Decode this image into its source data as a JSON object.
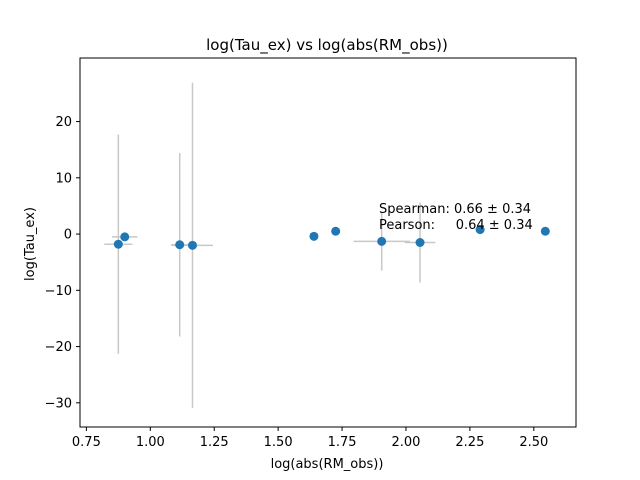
{
  "chart_data": {
    "type": "scatter",
    "title": "log(Tau_ex) vs log(abs(RM_obs))",
    "xlabel": "log(abs(RM_obs))",
    "ylabel": "log(Tau_ex)",
    "xlim": [
      0.725,
      2.665
    ],
    "ylim": [
      -34.3,
      31.3
    ],
    "xticks": [
      0.75,
      1.0,
      1.25,
      1.5,
      1.75,
      2.0,
      2.25,
      2.5
    ],
    "xtick_labels": [
      "0.75",
      "1.00",
      "1.25",
      "1.50",
      "1.75",
      "2.00",
      "2.25",
      "2.50"
    ],
    "yticks": [
      -30,
      -20,
      -10,
      0,
      10,
      20
    ],
    "ytick_labels": [
      "−30",
      "−20",
      "−10",
      "0",
      "10",
      "20"
    ],
    "grid": false,
    "marker_color": "#1f77b4",
    "errorbar_color": "#c8c8c8",
    "points": [
      {
        "x": 0.875,
        "y": -1.8,
        "xerr": 0.055,
        "yerr": 19.5
      },
      {
        "x": 0.9,
        "y": -0.5,
        "xerr": 0.05,
        "yerr": 0
      },
      {
        "x": 1.115,
        "y": -1.9,
        "xerr": 0.035,
        "yerr": 16.3
      },
      {
        "x": 1.165,
        "y": -2.0,
        "xerr": 0.08,
        "yerr": 28.9
      },
      {
        "x": 1.64,
        "y": -0.4,
        "xerr": 0,
        "yerr": 0
      },
      {
        "x": 1.725,
        "y": 0.5,
        "xerr": 0,
        "yerr": 0
      },
      {
        "x": 1.905,
        "y": -1.3,
        "xerr": 0.11,
        "yerr": 5.2
      },
      {
        "x": 2.055,
        "y": -1.5,
        "xerr": 0.06,
        "yerr": 7.1
      },
      {
        "x": 2.29,
        "y": 0.8,
        "xerr": 0,
        "yerr": 0
      },
      {
        "x": 2.545,
        "y": 0.5,
        "xerr": 0,
        "yerr": 0
      }
    ],
    "annotations": [
      "Spearman: 0.66 ± 0.34",
      "Pearson:     0.64 ± 0.34"
    ]
  }
}
